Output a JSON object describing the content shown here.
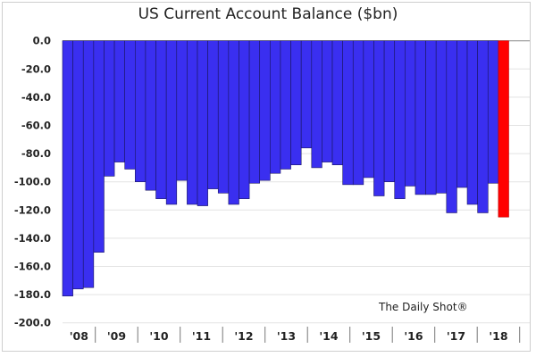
{
  "chart_data": {
    "type": "bar",
    "title": "US Current Account Balance ($bn)",
    "xlabel": "",
    "ylabel": "",
    "ylim": [
      -200,
      0
    ],
    "yticks": [
      "0.0",
      "-20.0",
      "-40.0",
      "-60.0",
      "-80.0",
      "-100.0",
      "-120.0",
      "-140.0",
      "-160.0",
      "-180.0",
      "-200.0"
    ],
    "year_labels": [
      "'08",
      "'09",
      "'10",
      "'11",
      "'12",
      "'13",
      "'14",
      "'15",
      "'16",
      "'17",
      "'18"
    ],
    "values": [
      -181,
      -176,
      -175,
      -150,
      -96,
      -86,
      -91,
      -100,
      -106,
      -112,
      -116,
      -99,
      -116,
      -117,
      -105,
      -108,
      -116,
      -112,
      -101,
      -99,
      -94,
      -91,
      -88,
      -76,
      -90,
      -86,
      -88,
      -102,
      -102,
      -97,
      -110,
      -100,
      -112,
      -103,
      -109,
      -109,
      -108,
      -122,
      -104,
      -116,
      -122,
      -101,
      -125
    ],
    "highlight_last": true,
    "grid": true,
    "colors": {
      "bar": "#3a2ff0",
      "highlight": "#ff0000",
      "grid": "#e3e3e3"
    }
  },
  "credit": "The Daily Shot®"
}
